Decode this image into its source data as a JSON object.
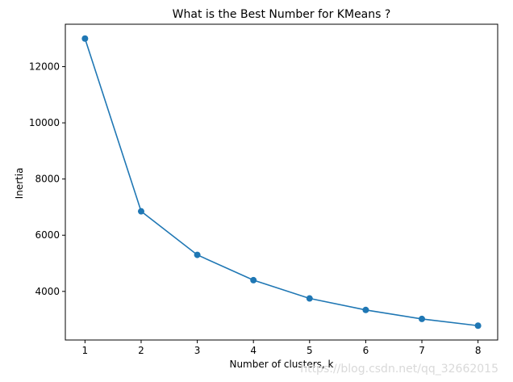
{
  "chart_data": {
    "type": "line",
    "title": "What is the Best Number for KMeans ?",
    "xlabel": "Number of clusters, k",
    "ylabel": "Inertia",
    "x": [
      1,
      2,
      3,
      4,
      5,
      6,
      7,
      8
    ],
    "series": [
      {
        "values": [
          13000,
          6850,
          5300,
          4400,
          3750,
          3340,
          3020,
          2780
        ],
        "color": "#1f77b4",
        "marker": "circle"
      }
    ],
    "xticks": [
      "1",
      "2",
      "3",
      "4",
      "5",
      "6",
      "7",
      "8"
    ],
    "yticks": [
      4000,
      6000,
      8000,
      10000,
      12000
    ],
    "ytick_labels": [
      "4000",
      "6000",
      "8000",
      "10000",
      "12000"
    ],
    "xlim": [
      0.65,
      8.35
    ],
    "ylim": [
      2270,
      13510
    ],
    "grid": false,
    "legend": "none"
  },
  "watermark": "https://blog.csdn.net/qq_32662015"
}
